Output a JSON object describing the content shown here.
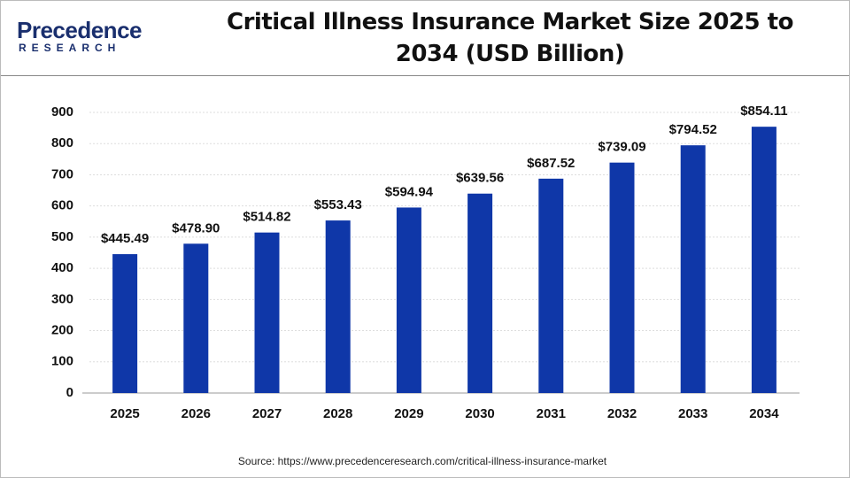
{
  "logo": {
    "name": "Precedence",
    "tagline": "RESEARCH"
  },
  "chart_data": {
    "type": "bar",
    "title": "Critical Illness Insurance Market Size 2025 to 2034 (USD Billion)",
    "categories": [
      "2025",
      "2026",
      "2027",
      "2028",
      "2029",
      "2030",
      "2031",
      "2032",
      "2033",
      "2034"
    ],
    "values": [
      445.49,
      478.9,
      514.82,
      553.43,
      594.94,
      639.56,
      687.52,
      739.09,
      794.52,
      854.11
    ],
    "value_labels": [
      "$445.49",
      "$478.90",
      "$514.82",
      "$553.43",
      "$594.94",
      "$639.56",
      "$687.52",
      "$739.09",
      "$794.52",
      "$854.11"
    ],
    "color": "#0f37a8",
    "ylim": [
      0,
      900
    ],
    "yticks": [
      0,
      100,
      200,
      300,
      400,
      500,
      600,
      700,
      800,
      900
    ],
    "grid": true,
    "source": "Source: https://www.precedenceresearch.com/critical-illness-insurance-market"
  }
}
